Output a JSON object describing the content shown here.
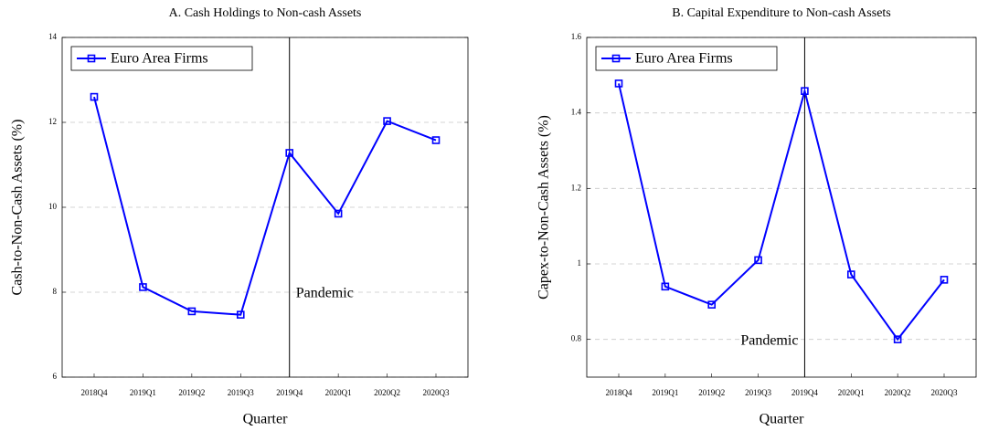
{
  "chart_data": [
    {
      "type": "line",
      "title": "A. Cash Holdings to Non-cash Assets",
      "x_label": "Quarter",
      "y_label": "Cash-to-Non-Cash Assets (%)",
      "categories": [
        "2018Q4",
        "2019Q1",
        "2019Q2",
        "2019Q3",
        "2019Q4",
        "2020Q1",
        "2020Q2",
        "2020Q3"
      ],
      "series": [
        {
          "name": "Euro Area Firms",
          "color": "#0000ff",
          "values": [
            12.6,
            8.12,
            7.55,
            7.47,
            11.28,
            9.85,
            12.03,
            11.58
          ]
        }
      ],
      "ylim": [
        6,
        14
      ],
      "yticks": [
        6,
        8,
        10,
        12,
        14
      ],
      "grid": true,
      "legend": "upper-left",
      "event_line": {
        "category_index": 4,
        "label": "Pandemic"
      }
    },
    {
      "type": "line",
      "title": "B. Capital Expenditure to Non-cash Assets",
      "x_label": "Quarter",
      "y_label": "Capex-to-Non-Cash Assets (%)",
      "categories": [
        "2018Q4",
        "2019Q1",
        "2019Q2",
        "2019Q3",
        "2019Q4",
        "2020Q1",
        "2020Q2",
        "2020Q3"
      ],
      "series": [
        {
          "name": "Euro Area Firms",
          "color": "#0000ff",
          "values": [
            1.478,
            0.94,
            0.892,
            1.01,
            1.458,
            0.972,
            0.8,
            0.958
          ]
        }
      ],
      "ylim": [
        0.7,
        1.6
      ],
      "yticks": [
        0.8,
        1,
        1.2,
        1.4,
        1.6
      ],
      "grid": true,
      "legend": "upper-left",
      "event_line": {
        "category_index": 4,
        "label": "Pandemic"
      }
    }
  ]
}
